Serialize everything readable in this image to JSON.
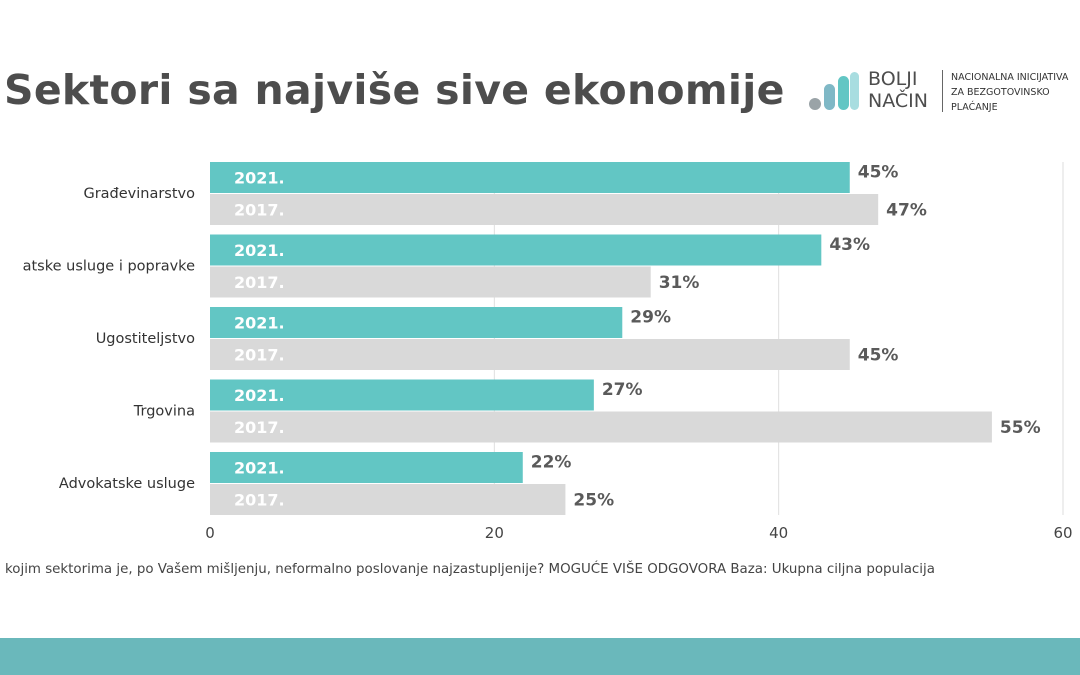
{
  "title": "Sektori sa najviše sive ekonomije",
  "logo": {
    "name_line1": "BOLJI",
    "name_line2": "NAČIN",
    "tagline_line1": "NACIONALNA INICIJATIVA",
    "tagline_line2": "ZA BEZGOTOVINSKO",
    "tagline_line3": "PLAĆANJE"
  },
  "colors": {
    "series_2021": "#62c6c4",
    "series_2017": "#d9d9d9",
    "bottom_bar": "#6ab8bb",
    "value_label": "#5a5a5a"
  },
  "chart_data": {
    "type": "bar",
    "orientation": "horizontal",
    "categories": [
      "Građevinarstvo",
      "atske usluge i popravke",
      "Ugostiteljstvo",
      "Trgovina",
      "Advokatske usluge"
    ],
    "series": [
      {
        "name": "2021.",
        "values": [
          45,
          43,
          29,
          27,
          22
        ],
        "labels": [
          "45%",
          "43%",
          "29%",
          "27%",
          "22%"
        ]
      },
      {
        "name": "2017.",
        "values": [
          47,
          31,
          45,
          55,
          25
        ],
        "labels": [
          "47%",
          "31%",
          "45%",
          "55%",
          "25%"
        ]
      }
    ],
    "xlim": [
      0,
      60
    ],
    "xticks": [
      "0",
      "20",
      "40",
      "60"
    ],
    "grid": true
  },
  "footnote": "kojim sektorima je, po Vašem mišljenju, neformalno poslovanje najzastupljenije? MOGUĆE VIŠE ODGOVORA  Baza: Ukupna ciljna populacija"
}
